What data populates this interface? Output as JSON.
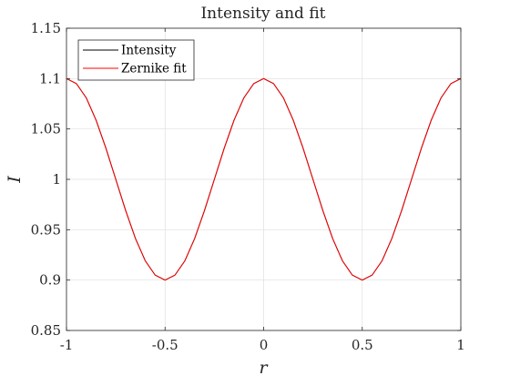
{
  "chart_data": {
    "type": "line",
    "title": "Intensity and fit",
    "xlabel": "r",
    "ylabel": "I",
    "xlim": [
      -1,
      1
    ],
    "ylim": [
      0.85,
      1.15
    ],
    "xticks": [
      -1,
      -0.5,
      0,
      0.5,
      1
    ],
    "xtick_labels": [
      "-1",
      "-0.5",
      "0",
      "0.5",
      "1"
    ],
    "yticks": [
      0.85,
      0.9,
      0.95,
      1,
      1.05,
      1.1,
      1.15
    ],
    "ytick_labels": [
      "0.85",
      "0.9",
      "0.95",
      "1",
      "1.05",
      "1.1",
      "1.15"
    ],
    "grid": true,
    "legend_position": "top-left",
    "x": [
      -1,
      -0.95,
      -0.9,
      -0.85,
      -0.8,
      -0.75,
      -0.7,
      -0.65,
      -0.6,
      -0.55,
      -0.5,
      -0.45,
      -0.4,
      -0.35,
      -0.3,
      -0.25,
      -0.2,
      -0.15,
      -0.1,
      -0.05,
      0,
      0.05,
      0.1,
      0.15,
      0.2,
      0.25,
      0.3,
      0.35,
      0.4,
      0.45,
      0.5,
      0.55,
      0.6,
      0.65,
      0.7,
      0.75,
      0.8,
      0.85,
      0.9,
      0.95,
      1
    ],
    "series": [
      {
        "name": "Intensity",
        "color": "#000000",
        "values": [
          1.1,
          1.0951,
          1.081,
          1.0588,
          1.0309,
          1.0,
          0.9691,
          0.9412,
          0.919,
          0.9049,
          0.9,
          0.9049,
          0.919,
          0.9412,
          0.9691,
          1.0,
          1.0309,
          1.0588,
          1.081,
          1.0951,
          1.1,
          1.0951,
          1.081,
          1.0588,
          1.0309,
          1.0,
          0.9691,
          0.9412,
          0.919,
          0.9049,
          0.9,
          0.9049,
          0.919,
          0.9412,
          0.9691,
          1.0,
          1.0309,
          1.0588,
          1.081,
          1.0951,
          1.1
        ]
      },
      {
        "name": "Zernike fit",
        "color": "#ff0000",
        "values": [
          1.1,
          1.0951,
          1.081,
          1.0588,
          1.0309,
          1.0,
          0.9691,
          0.9412,
          0.919,
          0.9049,
          0.9,
          0.9049,
          0.919,
          0.9412,
          0.9691,
          1.0,
          1.0309,
          1.0588,
          1.081,
          1.0951,
          1.1,
          1.0951,
          1.081,
          1.0588,
          1.0309,
          1.0,
          0.9691,
          0.9412,
          0.919,
          0.9049,
          0.9,
          0.9049,
          0.919,
          0.9412,
          0.9691,
          1.0,
          1.0309,
          1.0588,
          1.081,
          1.0951,
          1.1
        ]
      }
    ]
  }
}
